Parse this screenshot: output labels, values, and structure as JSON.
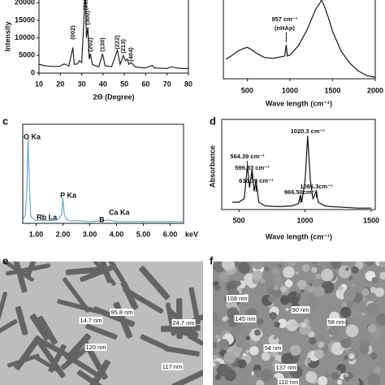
{
  "chart_data": [
    {
      "type": "line",
      "panel": "a",
      "ylabel": "Intensity",
      "xlabel": "2Θ (Degree)",
      "color": "#222222",
      "x": [
        10,
        12,
        14,
        16,
        18,
        20,
        21.8,
        22.9,
        24,
        25.9,
        26.5,
        28,
        28.9,
        30,
        31.8,
        32.2,
        32.9,
        33.5,
        34.1,
        35,
        36,
        38,
        39.8,
        41,
        42,
        44,
        46.7,
        48,
        49.5,
        50.5,
        51.3,
        52.1,
        53.2,
        55,
        57,
        60,
        63,
        64,
        66,
        70,
        72,
        75,
        78,
        80
      ],
      "values": [
        2500,
        2200,
        2000,
        1900,
        1900,
        2000,
        2600,
        2300,
        2000,
        7300,
        2500,
        2600,
        3500,
        3000,
        24000,
        10000,
        13000,
        4000,
        5500,
        2500,
        2200,
        1800,
        5500,
        2000,
        2000,
        1800,
        6500,
        2500,
        5000,
        3500,
        4000,
        2500,
        3000,
        1800,
        1600,
        1500,
        2200,
        1500,
        1400,
        1300,
        1800,
        1400,
        1300,
        1300
      ],
      "xlim": [
        10,
        80
      ],
      "xticks": [
        10,
        20,
        30,
        40,
        50,
        60,
        70,
        80
      ],
      "ylim": [
        0,
        21000
      ],
      "yticks": [
        0,
        5000,
        10000,
        15000,
        20000
      ],
      "annotations": [
        "(002)",
        "(211)",
        "(300)",
        "(202)",
        "(130)",
        "(222)",
        "(213)",
        "(404)"
      ]
    },
    {
      "type": "line",
      "panel": "b",
      "xlabel": "Wave length (cm⁻¹)",
      "color": "#111111",
      "x": [
        250,
        300,
        400,
        450,
        500,
        550,
        600,
        700,
        800,
        900,
        940,
        957,
        970,
        1000,
        1100,
        1200,
        1250,
        1300,
        1350,
        1370,
        1400,
        1450,
        1500,
        1600,
        1700,
        1800,
        1900,
        2000
      ],
      "values": [
        25,
        28,
        36,
        38,
        40,
        37,
        33,
        27,
        26,
        28,
        29,
        43,
        29,
        30,
        42,
        62,
        75,
        88,
        96,
        100,
        93,
        78,
        60,
        35,
        20,
        10,
        4,
        2
      ],
      "xlim": [
        220,
        2000
      ],
      "xticks": [
        500,
        1000,
        1500,
        2000
      ],
      "ylim": [
        0,
        100
      ],
      "annotations": [
        "957 cm⁻¹",
        "(nHAp)"
      ]
    },
    {
      "type": "line",
      "panel": "c",
      "xlabel": "keV",
      "color": "#6aa9c9",
      "x": [
        0.5,
        0.6,
        0.65,
        0.7,
        0.75,
        0.8,
        0.9,
        1.0,
        1.2,
        1.5,
        1.8,
        1.95,
        2.0,
        2.05,
        2.15,
        2.3,
        2.6,
        3.0,
        3.4,
        3.7,
        4.0,
        4.5,
        5.0,
        5.5,
        6.0,
        6.5
      ],
      "values": [
        4,
        10,
        40,
        100,
        40,
        8,
        5,
        3,
        4,
        3,
        4,
        10,
        30,
        10,
        4,
        3,
        3,
        2,
        3,
        4,
        2,
        2,
        2,
        2,
        2,
        2
      ],
      "xlim": [
        0.5,
        6.5
      ],
      "xticks": [
        {
          "value": 1,
          "label": "1.00"
        },
        {
          "value": 2,
          "label": "2.00"
        },
        {
          "value": 3,
          "label": "3.00"
        },
        {
          "value": 4,
          "label": "4.00"
        },
        {
          "value": 5,
          "label": "5.00"
        },
        {
          "value": 6,
          "label": "6.00"
        }
      ],
      "ylim": [
        0,
        100
      ],
      "annotations": [
        "O Ka",
        "P Ka",
        "Rb La",
        "Ca Ka",
        "B"
      ]
    },
    {
      "type": "line",
      "panel": "d",
      "ylabel": "Absorbance",
      "xlabel": "Wave length (cm⁻¹)",
      "color": "#111111",
      "x": [
        450,
        500,
        540,
        564,
        580,
        600,
        615,
        630,
        650,
        700,
        800,
        900,
        950,
        966,
        975,
        1000,
        1020,
        1040,
        1060,
        1086,
        1100,
        1150,
        1200,
        1300,
        1400,
        1500
      ],
      "values": [
        10,
        10,
        15,
        60,
        30,
        55,
        25,
        40,
        10,
        5,
        4,
        5,
        8,
        20,
        10,
        40,
        100,
        40,
        15,
        25,
        10,
        5,
        4,
        3,
        2,
        2
      ],
      "xlim": [
        370,
        1531
      ],
      "xticks": [
        500,
        1000,
        1500
      ],
      "ylim": [
        0,
        100
      ],
      "annotations": [
        "564.39 cm⁻¹",
        "599.83 cm⁻¹",
        "630.39 cm⁻¹",
        "966.50cm⁻¹",
        "1020.3 cm⁻¹",
        "1086.3cm⁻¹"
      ]
    }
  ],
  "micrographs": [
    {
      "panel": "e",
      "labels": [
        "95.8 nm",
        "14.7 nm",
        "24.7 nm",
        "120 nm",
        "117 nm"
      ]
    },
    {
      "panel": "f",
      "labels": [
        "108 nm",
        "145 nm",
        "90 nm",
        "58 nm",
        "54 nm",
        "137 nm",
        "110 nm"
      ]
    }
  ]
}
